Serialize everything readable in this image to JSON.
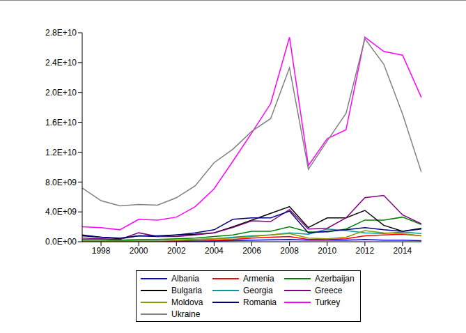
{
  "chart_data": {
    "type": "line",
    "x": [
      1997,
      1998,
      1999,
      2000,
      2001,
      2002,
      2003,
      2004,
      2005,
      2006,
      2007,
      2008,
      2009,
      2010,
      2011,
      2012,
      2013,
      2014,
      2015
    ],
    "xlim": [
      1997,
      2015
    ],
    "xticks": [
      1998,
      2000,
      2002,
      2004,
      2006,
      2008,
      2010,
      2012,
      2014
    ],
    "ylim": [
      0,
      28000000000.0
    ],
    "yticks": [
      {
        "value": 0,
        "label": "0.0E+00"
      },
      {
        "value": 4000000000.0,
        "label": "4.0E+09"
      },
      {
        "value": 8000000000.0,
        "label": "8.0E+09"
      },
      {
        "value": 12000000000.0,
        "label": "1.2E+10"
      },
      {
        "value": 16000000000.0,
        "label": "1.6E+10"
      },
      {
        "value": 20000000000.0,
        "label": "2.0E+10"
      },
      {
        "value": 24000000000.0,
        "label": "2.4E+10"
      },
      {
        "value": 28000000000.0,
        "label": "2.8E+10"
      }
    ],
    "grid": false,
    "legend": "bottom",
    "series": [
      {
        "name": "Albania",
        "color": "#0000ff",
        "values": [
          50000000.0,
          50000000.0,
          50000000.0,
          50000000.0,
          50000000.0,
          50000000.0,
          100000000.0,
          100000000.0,
          150000000.0,
          200000000.0,
          250000000.0,
          300000000.0,
          200000000.0,
          200000000.0,
          200000000.0,
          300000000.0,
          200000000.0,
          200000000.0,
          150000000.0
        ]
      },
      {
        "name": "Armenia",
        "color": "#ff0000",
        "values": [
          50000000.0,
          50000000.0,
          50000000.0,
          50000000.0,
          50000000.0,
          100000000.0,
          150000000.0,
          200000000.0,
          300000000.0,
          500000000.0,
          600000000.0,
          700000000.0,
          300000000.0,
          300000000.0,
          400000000.0,
          800000000.0,
          900000000.0,
          1000000000.0,
          800000000.0
        ]
      },
      {
        "name": "Azerbaijan",
        "color": "#008000",
        "values": [
          300000000.0,
          300000000.0,
          200000000.0,
          300000000.0,
          300000000.0,
          400000000.0,
          500000000.0,
          700000000.0,
          900000000.0,
          1400000000.0,
          1400000000.0,
          2000000000.0,
          1300000000.0,
          1300000000.0,
          1700000000.0,
          2900000000.0,
          2900000000.0,
          3300000000.0,
          2300000000.0
        ]
      },
      {
        "name": "Bulgaria",
        "color": "#000000",
        "values": [
          800000000.0,
          600000000.0,
          400000000.0,
          800000000.0,
          700000000.0,
          900000000.0,
          1000000000.0,
          1200000000.0,
          2000000000.0,
          2900000000.0,
          3800000000.0,
          4700000000.0,
          1900000000.0,
          3200000000.0,
          3200000000.0,
          4200000000.0,
          2200000000.0,
          1400000000.0,
          1800000000.0
        ]
      },
      {
        "name": "Georgia",
        "color": "#009999",
        "values": [
          100000000.0,
          100000000.0,
          100000000.0,
          100000000.0,
          100000000.0,
          200000000.0,
          300000000.0,
          400000000.0,
          600000000.0,
          800000000.0,
          900000000.0,
          1200000000.0,
          1000000000.0,
          1700000000.0,
          1500000000.0,
          1200000000.0,
          1100000000.0,
          1300000000.0,
          1100000000.0
        ]
      },
      {
        "name": "Greece",
        "color": "#800080",
        "values": [
          500000000.0,
          400000000.0,
          300000000.0,
          1200000000.0,
          700000000.0,
          700000000.0,
          900000000.0,
          1200000000.0,
          1900000000.0,
          2800000000.0,
          2700000000.0,
          4300000000.0,
          1700000000.0,
          1800000000.0,
          3200000000.0,
          5900000000.0,
          6200000000.0,
          3600000000.0,
          2400000000.0
        ]
      },
      {
        "name": "Moldova",
        "color": "#8a9a00",
        "values": [
          100000000.0,
          100000000.0,
          50000000.0,
          100000000.0,
          100000000.0,
          200000000.0,
          300000000.0,
          400000000.0,
          500000000.0,
          700000000.0,
          900000000.0,
          1100000000.0,
          500000000.0,
          400000000.0,
          600000000.0,
          1500000000.0,
          1200000000.0,
          1100000000.0,
          800000000.0
        ]
      },
      {
        "name": "Romania",
        "color": "#000080",
        "values": [
          900000000.0,
          600000000.0,
          500000000.0,
          800000000.0,
          800000000.0,
          900000000.0,
          1200000000.0,
          1600000000.0,
          3000000000.0,
          3200000000.0,
          3200000000.0,
          4100000000.0,
          1200000000.0,
          1400000000.0,
          1600000000.0,
          1900000000.0,
          1600000000.0,
          1400000000.0,
          1700000000.0
        ]
      },
      {
        "name": "Turkey",
        "color": "#ff00ff",
        "values": [
          2000000000.0,
          1900000000.0,
          1600000000.0,
          3000000000.0,
          2900000000.0,
          3300000000.0,
          4700000000.0,
          7100000000.0,
          10800000000.0,
          14600000000.0,
          18500000000.0,
          27400000000.0,
          10200000000.0,
          13800000000.0,
          15000000000.0,
          27400000000.0,
          25500000000.0,
          25000000000.0,
          19300000000.0
        ]
      },
      {
        "name": "Ukraine",
        "color": "#808080",
        "values": [
          7200000000.0,
          5500000000.0,
          4800000000.0,
          5000000000.0,
          4900000000.0,
          5900000000.0,
          7500000000.0,
          10600000000.0,
          12400000000.0,
          14800000000.0,
          16500000000.0,
          23300000000.0,
          9700000000.0,
          13500000000.0,
          17200000000.0,
          27200000000.0,
          23800000000.0,
          17100000000.0,
          9300000000.0
        ]
      }
    ]
  }
}
